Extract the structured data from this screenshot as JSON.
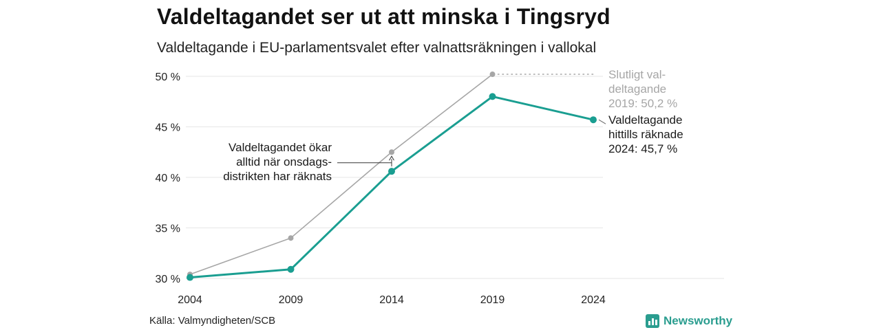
{
  "title": "Valdeltagandet ser ut att minska i Tingsryd",
  "subtitle": "Valdeltagande i EU-parlamentsvalet efter valnattsräkningen i vallokal",
  "source": "Källa: Valmyndigheten/SCB",
  "brand": "Newsworthy",
  "colors": {
    "final": "#a6a6a6",
    "counted": "#1a9e91",
    "grid": "#e6e6e6",
    "brand": "#2a9d8f"
  },
  "chart_data": {
    "type": "line",
    "title": "Valdeltagandet ser ut att minska i Tingsryd",
    "subtitle": "Valdeltagande i EU-parlamentsvalet efter valnattsräkningen i vallokal",
    "xlabel": "",
    "ylabel": "",
    "x": [
      2004,
      2009,
      2014,
      2019,
      2024
    ],
    "ylim": [
      30,
      50
    ],
    "y_ticks": [
      30,
      35,
      40,
      45,
      50
    ],
    "y_tick_labels": [
      "30 %",
      "35 %",
      "40 %",
      "45 %",
      "50 %"
    ],
    "grid": true,
    "legend": "none",
    "series": [
      {
        "key": "final",
        "values": [
          30.4,
          34.0,
          42.5,
          50.2,
          null
        ]
      },
      {
        "key": "counted",
        "values": [
          30.1,
          30.9,
          40.6,
          48.0,
          45.7
        ]
      }
    ],
    "annotations": {
      "final": [
        "Slutligt val-",
        "deltagande",
        "2019: 50,2 %"
      ],
      "counted": [
        "Valdeltagande",
        "hittills räknade",
        "2024: 45,7 %"
      ],
      "wednesday": [
        "Valdeltagandet ökar",
        "alltid när onsdags-",
        "distrikten har räknats"
      ]
    }
  }
}
